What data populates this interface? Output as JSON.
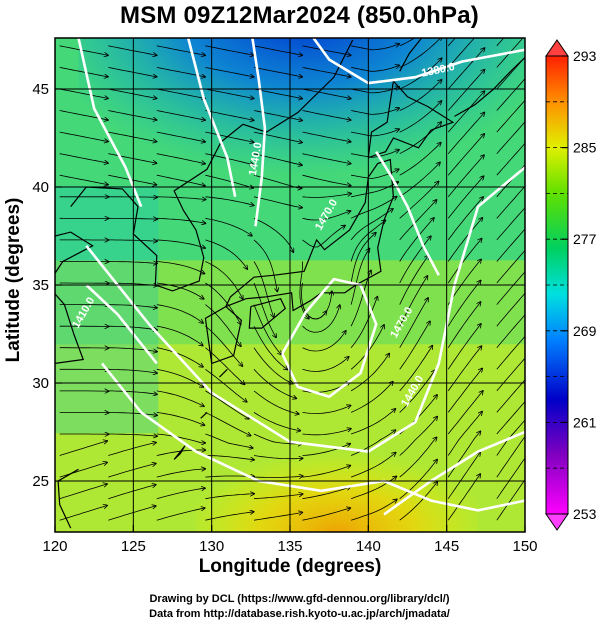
{
  "chart_data": {
    "type": "heatmap",
    "title": "MSM 09Z12Mar2024 (850.0hPa)",
    "xlabel": "Longitude (degrees)",
    "ylabel": "Latitude  (degrees)",
    "xlim": [
      120,
      150
    ],
    "ylim": [
      22.4,
      47.6
    ],
    "x_ticks": [
      120,
      125,
      130,
      135,
      140,
      145,
      150
    ],
    "y_ticks": [
      25,
      30,
      35,
      40,
      45
    ],
    "grid": true,
    "colorbar": {
      "min": 253,
      "max": 293,
      "tick_labels": [
        293,
        285,
        277,
        269,
        261,
        253
      ]
    },
    "contour_labels": [
      "1380.0",
      "1440.0",
      "1470.0",
      "1410.0",
      "1470.0",
      "1440.0"
    ],
    "variables": [
      "temperature",
      "geopotential height",
      "wind streamlines"
    ]
  },
  "credits": {
    "line1": "Drawing by DCL (https://www.gfd-dennou.org/library/dcl/)",
    "line2": "Data from http://database.rish.kyoto-u.ac.jp/arch/jmadata/"
  }
}
